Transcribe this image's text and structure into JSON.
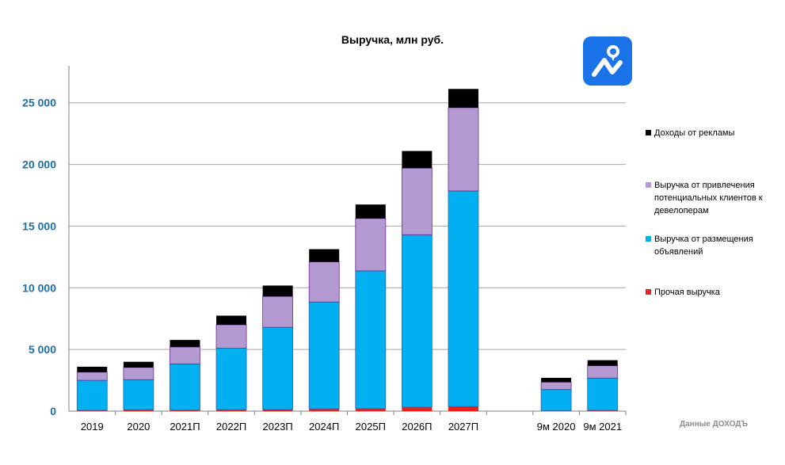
{
  "chart_data": {
    "type": "bar",
    "stacked": true,
    "title": "Выручка, млн руб.",
    "xlabel": "",
    "ylabel": "",
    "ylim": [
      0,
      28000
    ],
    "yticks": [
      0,
      5000,
      10000,
      15000,
      20000,
      25000
    ],
    "ytick_labels": [
      "0",
      "5 000",
      "10 000",
      "15 000",
      "20 000",
      "25 000"
    ],
    "grid": true,
    "legend_position": "right",
    "categories": [
      "2019",
      "2020",
      "2021П",
      "2022П",
      "2023П",
      "2024П",
      "2025П",
      "2026П",
      "2027П",
      "",
      "9м 2020",
      "9м 2021"
    ],
    "series": [
      {
        "name": "Прочая выручка",
        "color": "#e8211d",
        "values": [
          60,
          120,
          80,
          120,
          140,
          180,
          200,
          320,
          380,
          null,
          30,
          60
        ]
      },
      {
        "name": "Выручка от размещения объявлений",
        "color": "#00b0f0",
        "values": [
          2440,
          2430,
          3750,
          4980,
          6660,
          8670,
          11170,
          13980,
          17470,
          null,
          1720,
          2620
        ]
      },
      {
        "name": "Выручка от привлечения потенциальных клиентов к девелоперам",
        "color": "#b39ad1",
        "values": [
          660,
          990,
          1370,
          1900,
          2500,
          3250,
          4250,
          5400,
          6750,
          null,
          600,
          1000
        ]
      },
      {
        "name": "Доходы от рекламы",
        "color": "#000000",
        "values": [
          440,
          460,
          570,
          740,
          880,
          1030,
          1130,
          1390,
          1520,
          null,
          350,
          450
        ]
      }
    ]
  },
  "legend": [
    {
      "label": "Доходы от рекламы",
      "color": "#000000"
    },
    {
      "label": "Выручка от привлечения потенциальных клиентов к девелоперам",
      "color": "#b39ad1"
    },
    {
      "label": "Выручка от размещения объявлений",
      "color": "#00b0f0"
    },
    {
      "label": "Прочая выручка",
      "color": "#e8211d"
    }
  ],
  "source_note": "Данные ДОХОДЪ",
  "colors": {
    "axis_label": "#1a6fb0",
    "grid": "#a6a6a6",
    "logo_bg": "#1a73e8"
  }
}
